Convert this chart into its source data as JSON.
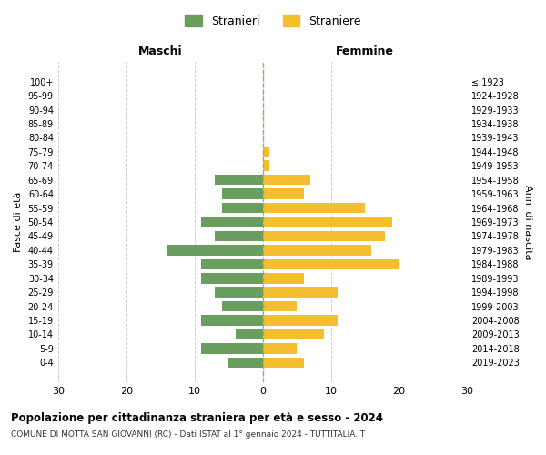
{
  "age_groups": [
    "0-4",
    "5-9",
    "10-14",
    "15-19",
    "20-24",
    "25-29",
    "30-34",
    "35-39",
    "40-44",
    "45-49",
    "50-54",
    "55-59",
    "60-64",
    "65-69",
    "70-74",
    "75-79",
    "80-84",
    "85-89",
    "90-94",
    "95-99",
    "100+"
  ],
  "birth_years": [
    "2019-2023",
    "2014-2018",
    "2009-2013",
    "2004-2008",
    "1999-2003",
    "1994-1998",
    "1989-1993",
    "1984-1988",
    "1979-1983",
    "1974-1978",
    "1969-1973",
    "1964-1968",
    "1959-1963",
    "1954-1958",
    "1949-1953",
    "1944-1948",
    "1939-1943",
    "1934-1938",
    "1929-1933",
    "1924-1928",
    "≤ 1923"
  ],
  "males": [
    5,
    9,
    4,
    9,
    6,
    7,
    9,
    9,
    14,
    7,
    9,
    6,
    6,
    7,
    0,
    0,
    0,
    0,
    0,
    0,
    0
  ],
  "females": [
    6,
    5,
    9,
    11,
    5,
    11,
    6,
    20,
    16,
    18,
    19,
    15,
    6,
    7,
    1,
    1,
    0,
    0,
    0,
    0,
    0
  ],
  "male_color": "#6a9e5e",
  "female_color": "#f5be2e",
  "background_color": "#ffffff",
  "grid_color": "#cccccc",
  "title": "Popolazione per cittadinanza straniera per età e sesso - 2024",
  "subtitle": "COMUNE DI MOTTA SAN GIOVANNI (RC) - Dati ISTAT al 1° gennaio 2024 - TUTTITALIA.IT",
  "xlabel_left": "Maschi",
  "xlabel_right": "Femmine",
  "ylabel_left": "Fasce di età",
  "ylabel_right": "Anni di nascita",
  "legend_male": "Stranieri",
  "legend_female": "Straniere",
  "xlim": 30
}
